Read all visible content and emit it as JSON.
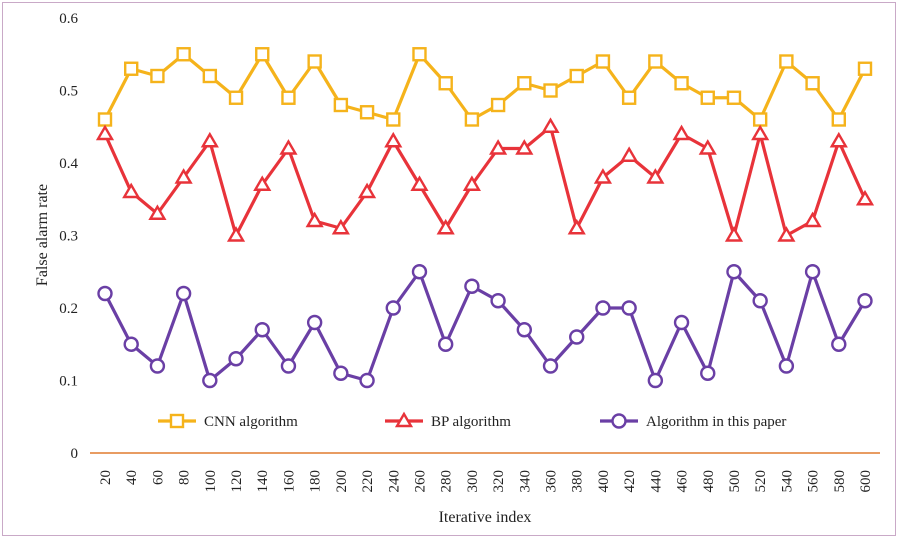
{
  "chart_data": {
    "type": "line",
    "title": "",
    "xlabel": "Iterative index",
    "ylabel": "False alarm rate",
    "ylim": [
      0,
      0.6
    ],
    "yticks": [
      "0",
      "0.1",
      "0.2",
      "0.3",
      "0.4",
      "0.5",
      "0.6"
    ],
    "x": [
      20,
      40,
      60,
      80,
      100,
      120,
      140,
      160,
      180,
      200,
      220,
      240,
      260,
      280,
      300,
      320,
      340,
      360,
      380,
      400,
      420,
      440,
      460,
      480,
      500,
      520,
      540,
      560,
      580,
      600
    ],
    "grid": false,
    "legend_position": "bottom-inside",
    "series": [
      {
        "name": "CNN algorithm",
        "color": "#f5b31b",
        "marker": "square",
        "values": [
          0.46,
          0.53,
          0.52,
          0.55,
          0.52,
          0.49,
          0.55,
          0.49,
          0.54,
          0.48,
          0.47,
          0.46,
          0.55,
          0.51,
          0.46,
          0.48,
          0.51,
          0.5,
          0.52,
          0.54,
          0.49,
          0.54,
          0.51,
          0.49,
          0.49,
          0.46,
          0.54,
          0.51,
          0.46,
          0.53
        ]
      },
      {
        "name": "BP algorithm",
        "color": "#e8333a",
        "marker": "triangle",
        "values": [
          0.44,
          0.36,
          0.33,
          0.38,
          0.43,
          0.3,
          0.37,
          0.42,
          0.32,
          0.31,
          0.36,
          0.43,
          0.37,
          0.31,
          0.37,
          0.42,
          0.42,
          0.45,
          0.31,
          0.38,
          0.41,
          0.38,
          0.44,
          0.42,
          0.3,
          0.44,
          0.3,
          0.32,
          0.43,
          0.35
        ]
      },
      {
        "name": "Algorithm in this paper",
        "color": "#6a3fa5",
        "marker": "circle",
        "values": [
          0.22,
          0.15,
          0.12,
          0.22,
          0.1,
          0.13,
          0.17,
          0.12,
          0.18,
          0.11,
          0.1,
          0.2,
          0.25,
          0.15,
          0.23,
          0.21,
          0.17,
          0.12,
          0.16,
          0.2,
          0.2,
          0.1,
          0.18,
          0.11,
          0.25,
          0.21,
          0.12,
          0.25,
          0.15,
          0.21
        ]
      }
    ],
    "baseline_color": "#e07b2e"
  }
}
